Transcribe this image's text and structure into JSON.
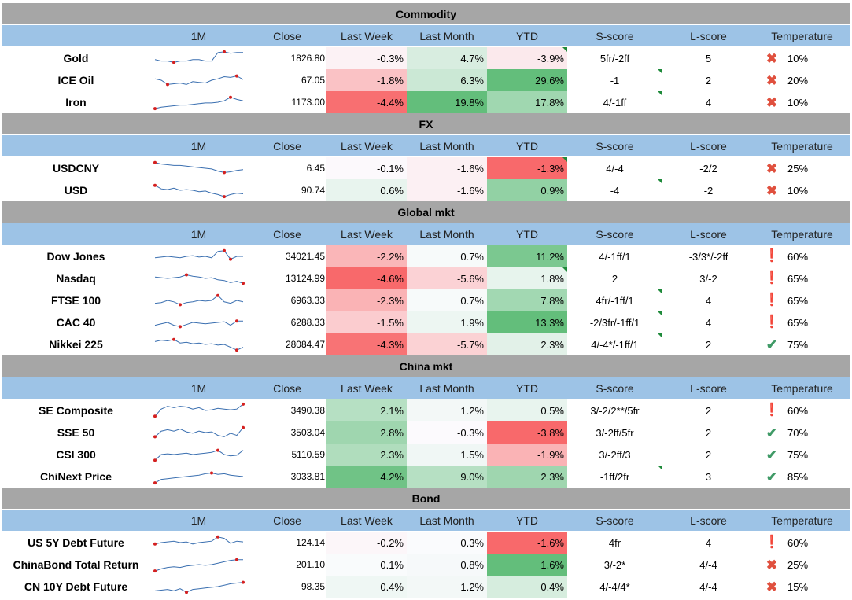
{
  "columns": {
    "name": "",
    "spark": "1M",
    "close": "Close",
    "last_week": "Last Week",
    "last_month": "Last Month",
    "ytd": "YTD",
    "s_score": "S-score",
    "l_score": "L-score",
    "temperature": "Temperature"
  },
  "icon_colors": {
    "x": "#e0503e",
    "exclaim": "#f0b000",
    "check": "#3f9a66"
  },
  "heat_colors": {
    "green": "#63be7b",
    "red": "#f8696b",
    "neutral": "#fcfcff"
  },
  "sections": [
    {
      "title": "Commodity",
      "rows": [
        {
          "name": "Gold",
          "close": "1826.80",
          "lw": "-0.3%",
          "lwv": -0.3,
          "lm": "4.7%",
          "lmv": 4.7,
          "ytd": "-3.9%",
          "ytdv": -3.9,
          "ytd_flag": true,
          "s": "5fr/-2ff",
          "s_flag": false,
          "l": "5",
          "icon": "x-icon",
          "temp": "10%",
          "spark": [
            0.4,
            0.3,
            0.3,
            0.2,
            0.3,
            0.3,
            0.4,
            0.4,
            0.3,
            0.3,
            0.9,
            0.95,
            0.85,
            0.9,
            0.9
          ]
        },
        {
          "name": "ICE Oil",
          "close": "67.05",
          "lw": "-1.8%",
          "lwv": -1.8,
          "lm": "6.3%",
          "lmv": 6.3,
          "ytd": "29.6%",
          "ytdv": 29.6,
          "ytd_flag": false,
          "s": "-1",
          "s_flag": true,
          "l": "2",
          "icon": "x-icon",
          "temp": "20%",
          "spark": [
            0.6,
            0.5,
            0.2,
            0.25,
            0.3,
            0.2,
            0.4,
            0.35,
            0.3,
            0.5,
            0.6,
            0.75,
            0.7,
            0.8,
            0.55
          ]
        },
        {
          "name": "Iron",
          "close": "1173.00",
          "lw": "-4.4%",
          "lwv": -4.4,
          "lm": "19.8%",
          "lmv": 19.8,
          "ytd": "17.8%",
          "ytdv": 17.8,
          "ytd_flag": false,
          "s": "4/-1ff",
          "s_flag": true,
          "l": "4",
          "icon": "x-icon",
          "temp": "10%",
          "spark": [
            0.05,
            0.15,
            0.2,
            0.25,
            0.3,
            0.3,
            0.35,
            0.4,
            0.45,
            0.45,
            0.5,
            0.6,
            0.85,
            0.7,
            0.6
          ]
        }
      ]
    },
    {
      "title": "FX",
      "rows": [
        {
          "name": "USDCNY",
          "close": "6.45",
          "lw": "-0.1%",
          "lwv": -0.1,
          "lm": "-1.6%",
          "lmv": -1.6,
          "ytd": "-1.3%",
          "ytdv": -1.3,
          "ytd_flag": true,
          "s": "4/-4",
          "s_flag": false,
          "l": "-2/2",
          "icon": "x-icon",
          "temp": "25%",
          "spark": [
            0.9,
            0.8,
            0.75,
            0.7,
            0.7,
            0.65,
            0.6,
            0.55,
            0.5,
            0.45,
            0.3,
            0.2,
            0.25,
            0.35,
            0.4
          ]
        },
        {
          "name": "USD",
          "close": "90.74",
          "lw": "0.6%",
          "lwv": 0.6,
          "lm": "-1.6%",
          "lmv": -1.6,
          "ytd": "0.9%",
          "ytdv": 0.9,
          "ytd_flag": false,
          "s": "-4",
          "s_flag": true,
          "l": "-2",
          "icon": "x-icon",
          "temp": "10%",
          "spark": [
            0.85,
            0.6,
            0.55,
            0.65,
            0.5,
            0.55,
            0.5,
            0.4,
            0.45,
            0.3,
            0.2,
            0.05,
            0.2,
            0.3,
            0.25
          ]
        }
      ]
    },
    {
      "title": "Global mkt",
      "rows": [
        {
          "name": "Dow Jones",
          "close": "34021.45",
          "lw": "-2.2%",
          "lwv": -2.2,
          "lm": "0.7%",
          "lmv": 0.7,
          "ytd": "11.2%",
          "ytdv": 11.2,
          "ytd_flag": false,
          "s": "4/-1ff/1",
          "s_flag": false,
          "l": "-3/3*/-2ff",
          "icon": "exclaim-icon",
          "temp": "60%",
          "spark": [
            0.4,
            0.45,
            0.5,
            0.45,
            0.4,
            0.5,
            0.55,
            0.45,
            0.5,
            0.4,
            0.85,
            0.9,
            0.3,
            0.5,
            0.5
          ]
        },
        {
          "name": "Nasdaq",
          "close": "13124.99",
          "lw": "-4.6%",
          "lwv": -4.6,
          "lm": "-5.6%",
          "lmv": -5.6,
          "ytd": "1.8%",
          "ytdv": 1.8,
          "ytd_flag": true,
          "s": "2",
          "s_flag": false,
          "l": "3/-2",
          "icon": "exclaim-icon",
          "temp": "65%",
          "spark": [
            0.6,
            0.55,
            0.5,
            0.55,
            0.6,
            0.75,
            0.65,
            0.6,
            0.5,
            0.55,
            0.4,
            0.35,
            0.2,
            0.3,
            0.15
          ]
        },
        {
          "name": "FTSE 100",
          "close": "6963.33",
          "lw": "-2.3%",
          "lwv": -2.3,
          "lm": "0.7%",
          "lmv": 0.7,
          "ytd": "7.8%",
          "ytdv": 7.8,
          "ytd_flag": false,
          "s": "4fr/-1ff/1",
          "s_flag": true,
          "l": "4",
          "icon": "exclaim-icon",
          "temp": "65%",
          "spark": [
            0.3,
            0.35,
            0.5,
            0.4,
            0.2,
            0.35,
            0.4,
            0.5,
            0.45,
            0.5,
            0.85,
            0.4,
            0.3,
            0.5,
            0.4
          ]
        },
        {
          "name": "CAC 40",
          "close": "6288.33",
          "lw": "-1.5%",
          "lwv": -1.5,
          "lm": "1.9%",
          "lmv": 1.9,
          "ytd": "13.3%",
          "ytdv": 13.3,
          "ytd_flag": false,
          "s": "-2/3fr/-1ff/1",
          "s_flag": true,
          "l": "4",
          "icon": "exclaim-icon",
          "temp": "65%",
          "spark": [
            0.3,
            0.4,
            0.5,
            0.3,
            0.2,
            0.35,
            0.5,
            0.45,
            0.4,
            0.45,
            0.5,
            0.55,
            0.3,
            0.6,
            0.6
          ]
        },
        {
          "name": "Nikkei 225",
          "close": "28084.47",
          "lw": "-4.3%",
          "lwv": -4.3,
          "lm": "-5.7%",
          "lmv": -5.7,
          "ytd": "2.3%",
          "ytdv": 2.3,
          "ytd_flag": false,
          "s": "4/-4*/-1ff/1",
          "s_flag": true,
          "l": "2",
          "icon": "check-icon",
          "temp": "75%",
          "spark": [
            0.7,
            0.8,
            0.75,
            0.85,
            0.6,
            0.65,
            0.55,
            0.6,
            0.5,
            0.55,
            0.45,
            0.5,
            0.3,
            0.1,
            0.3
          ]
        }
      ]
    },
    {
      "title": "China mkt",
      "rows": [
        {
          "name": "SE Composite",
          "close": "3490.38",
          "lw": "2.1%",
          "lwv": 2.1,
          "lm": "1.2%",
          "lmv": 1.2,
          "ytd": "0.5%",
          "ytdv": 0.5,
          "ytd_flag": false,
          "s": "3/-2/2**/5fr",
          "s_flag": false,
          "l": "2",
          "icon": "exclaim-icon",
          "temp": "60%",
          "spark": [
            0.1,
            0.6,
            0.8,
            0.7,
            0.8,
            0.75,
            0.6,
            0.7,
            0.5,
            0.55,
            0.65,
            0.6,
            0.55,
            0.6,
            0.95
          ]
        },
        {
          "name": "SSE 50",
          "close": "3503.04",
          "lw": "2.8%",
          "lwv": 2.8,
          "lm": "-0.3%",
          "lmv": -0.3,
          "ytd": "-3.8%",
          "ytdv": -3.8,
          "ytd_flag": false,
          "s": "3/-2ff/5fr",
          "s_flag": false,
          "l": "2",
          "icon": "check-icon",
          "temp": "70%",
          "spark": [
            0.2,
            0.6,
            0.7,
            0.6,
            0.75,
            0.55,
            0.45,
            0.6,
            0.5,
            0.55,
            0.3,
            0.2,
            0.45,
            0.3,
            0.85
          ]
        },
        {
          "name": "CSI 300",
          "close": "5110.59",
          "lw": "2.3%",
          "lwv": 2.3,
          "lm": "1.5%",
          "lmv": 1.5,
          "ytd": "-1.9%",
          "ytdv": -1.9,
          "ytd_flag": false,
          "s": "3/-2ff/3",
          "s_flag": false,
          "l": "2",
          "icon": "check-icon",
          "temp": "75%",
          "spark": [
            0.1,
            0.5,
            0.55,
            0.5,
            0.55,
            0.6,
            0.5,
            0.55,
            0.6,
            0.65,
            0.8,
            0.5,
            0.4,
            0.45,
            0.8
          ]
        },
        {
          "name": "ChiNext Price",
          "close": "3033.81",
          "lw": "4.2%",
          "lwv": 4.2,
          "lm": "9.0%",
          "lmv": 9.0,
          "ytd": "2.3%",
          "ytdv": 2.3,
          "ytd_flag": false,
          "s": "-1ff/2fr",
          "s_flag": true,
          "l": "3",
          "icon": "check-icon",
          "temp": "85%",
          "spark": [
            0.05,
            0.3,
            0.35,
            0.4,
            0.45,
            0.5,
            0.55,
            0.6,
            0.7,
            0.75,
            0.65,
            0.7,
            0.6,
            0.55,
            0.5
          ]
        }
      ]
    },
    {
      "title": "Bond",
      "rows": [
        {
          "name": "US 5Y Debt Future",
          "close": "124.14",
          "lw": "-0.2%",
          "lwv": -0.2,
          "lm": "0.3%",
          "lmv": 0.3,
          "ytd": "-1.6%",
          "ytdv": -1.6,
          "ytd_flag": false,
          "s": "4fr",
          "s_flag": false,
          "l": "4",
          "icon": "exclaim-icon",
          "temp": "60%",
          "spark": [
            0.4,
            0.5,
            0.55,
            0.6,
            0.5,
            0.55,
            0.4,
            0.5,
            0.55,
            0.6,
            0.9,
            0.8,
            0.45,
            0.6,
            0.55
          ]
        },
        {
          "name": "ChinaBond Total Return",
          "close": "201.10",
          "lw": "0.1%",
          "lwv": 0.1,
          "lm": "0.8%",
          "lmv": 0.8,
          "ytd": "1.6%",
          "ytdv": 1.6,
          "ytd_flag": false,
          "s": "3/-2*",
          "s_flag": false,
          "l": "4/-4",
          "icon": "x-icon",
          "temp": "25%",
          "spark": [
            0.05,
            0.2,
            0.3,
            0.35,
            0.3,
            0.4,
            0.45,
            0.5,
            0.45,
            0.5,
            0.6,
            0.7,
            0.8,
            0.85,
            0.85
          ]
        },
        {
          "name": "CN 10Y Debt Future",
          "close": "98.35",
          "lw": "0.4%",
          "lwv": 0.4,
          "lm": "1.2%",
          "lmv": 1.2,
          "ytd": "0.4%",
          "ytdv": 0.4,
          "ytd_flag": false,
          "s": "4/-4/4*",
          "s_flag": false,
          "l": "4/-4",
          "icon": "x-icon",
          "temp": "15%",
          "spark": [
            0.2,
            0.25,
            0.3,
            0.2,
            0.35,
            0.1,
            0.3,
            0.35,
            0.4,
            0.45,
            0.5,
            0.6,
            0.7,
            0.75,
            0.8
          ]
        }
      ]
    }
  ]
}
